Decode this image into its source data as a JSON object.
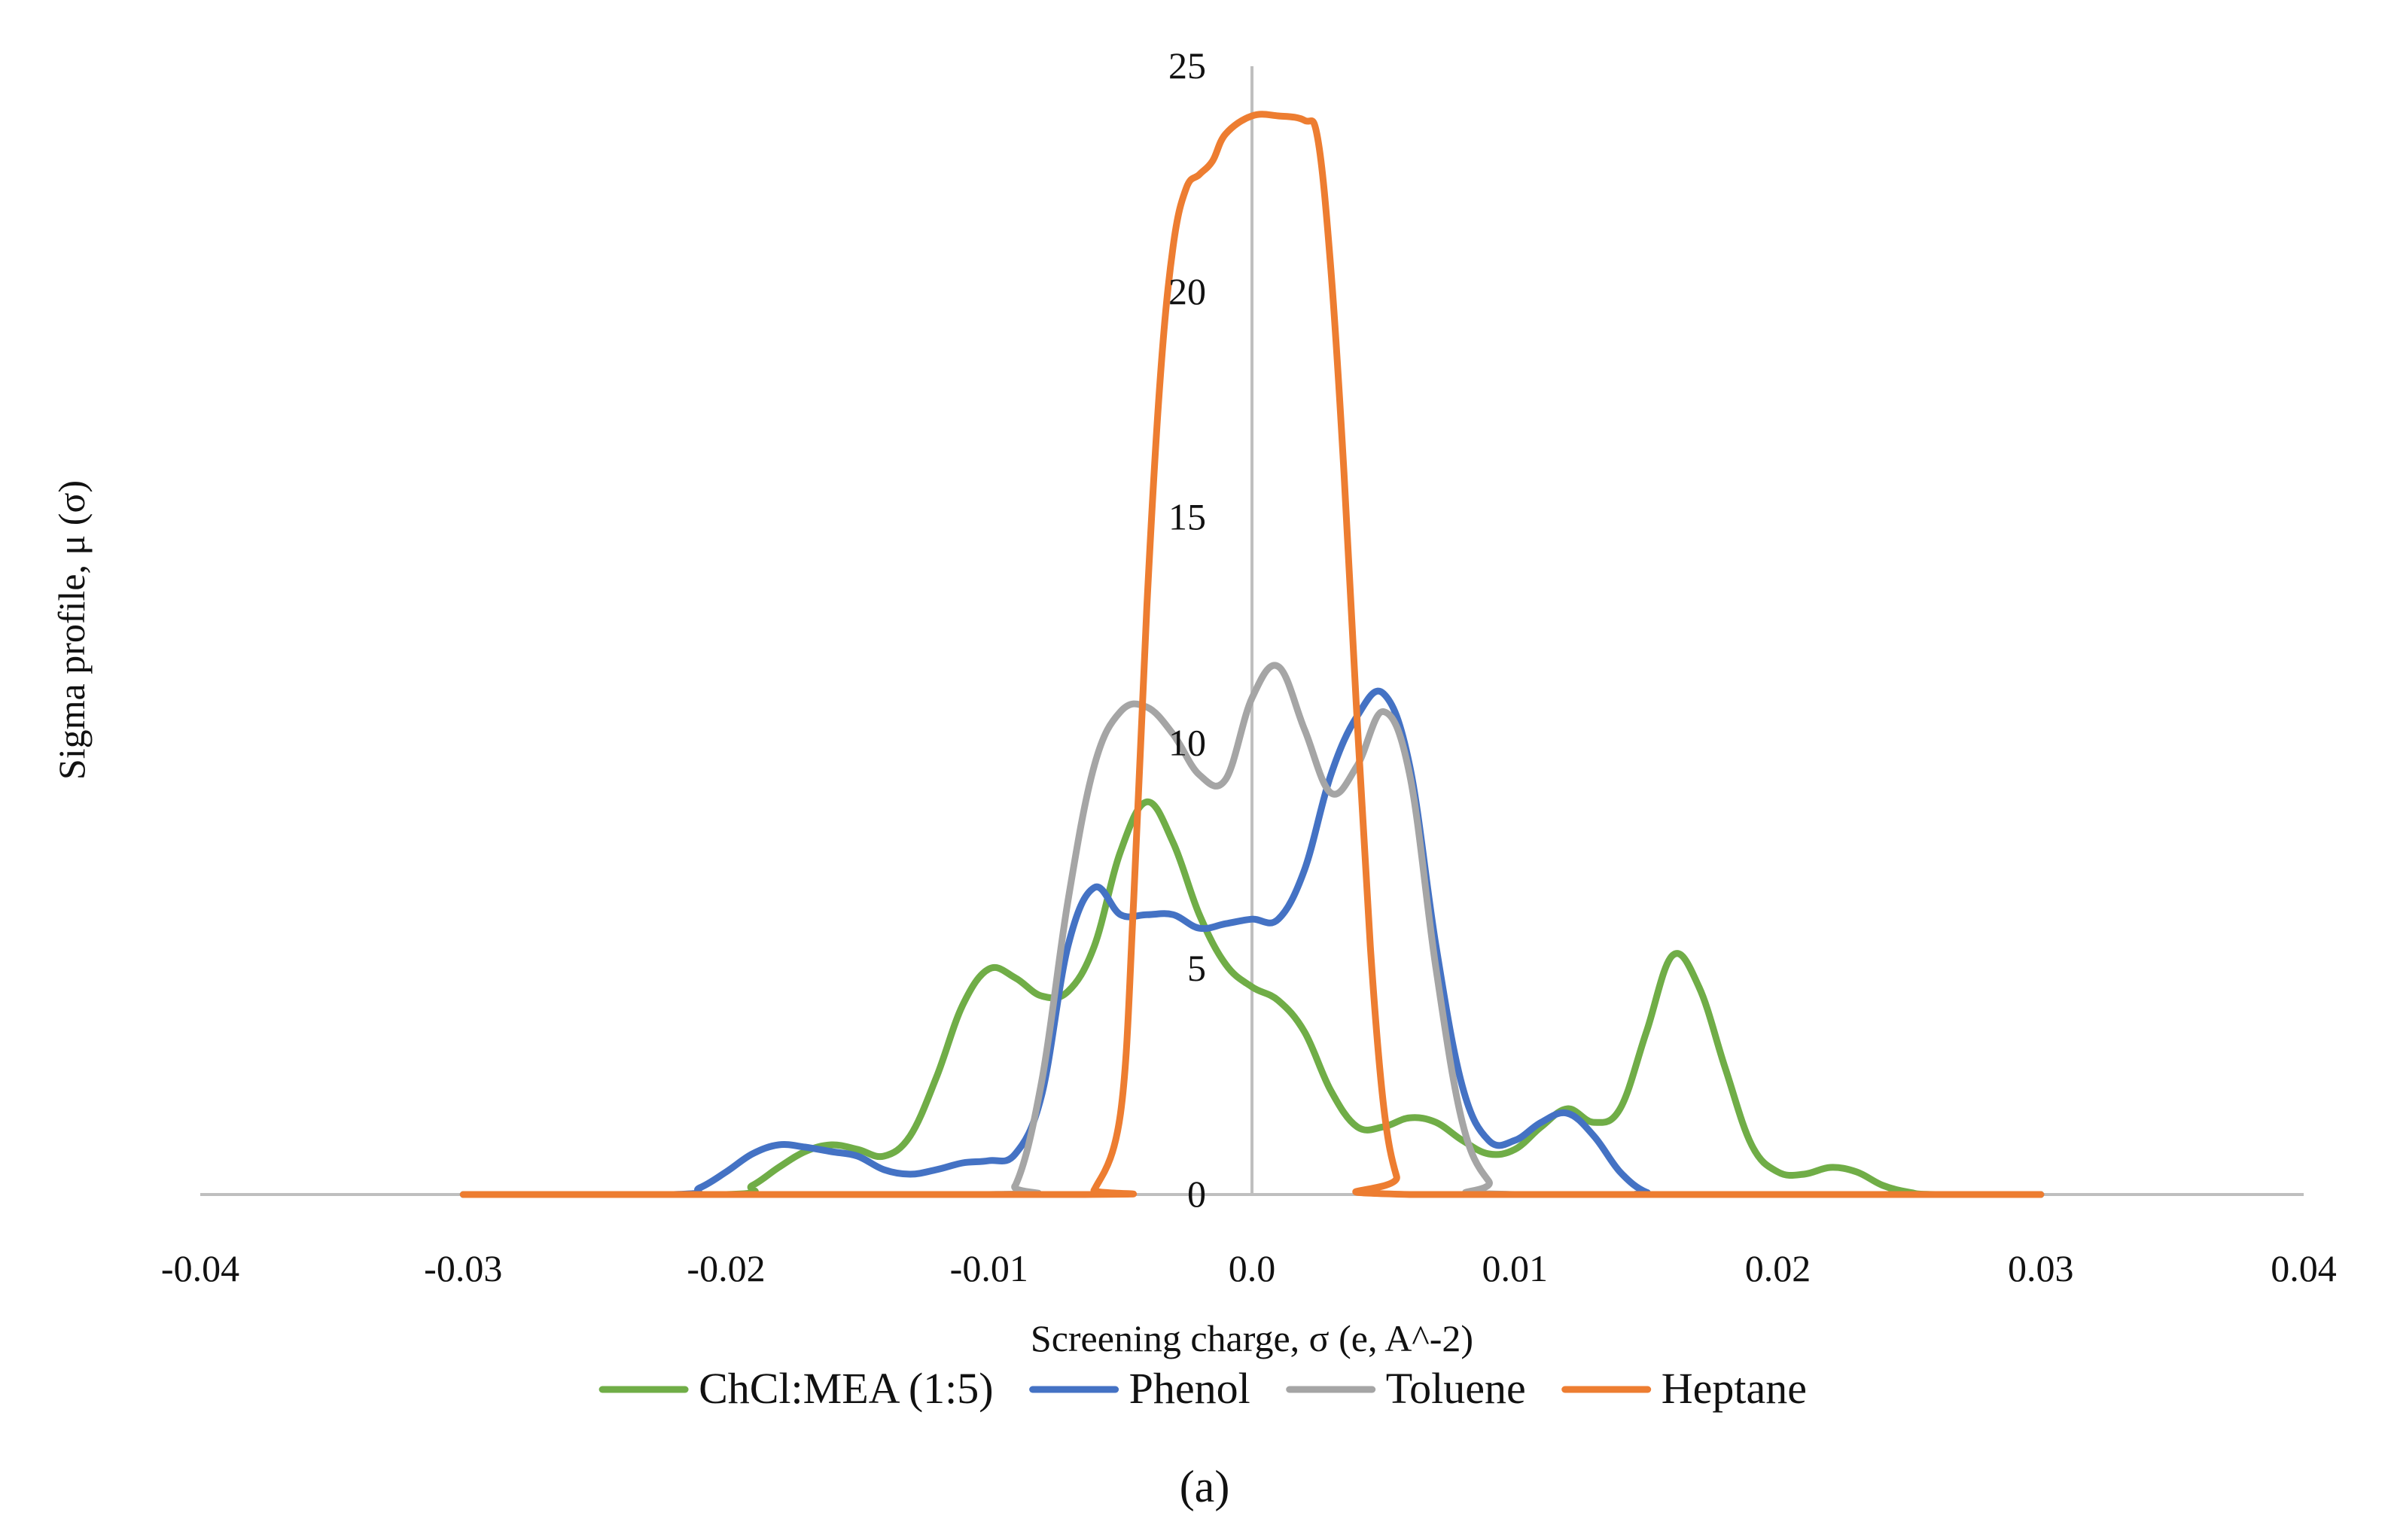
{
  "chart_data": {
    "type": "line",
    "title": "",
    "xlabel": "Screening charge, σ  (e, A^-2)",
    "ylabel": "Sigma profile,  μ (σ)",
    "xlim": [
      -0.04,
      0.04
    ],
    "ylim": [
      0,
      25
    ],
    "x_ticks": [
      "-0.04",
      "-0.03",
      "-0.02",
      "-0.01",
      "0.0",
      "0.01",
      "0.02",
      "0.03",
      "0.04"
    ],
    "y_ticks": [
      "0",
      "5",
      "10",
      "15",
      "20",
      "25"
    ],
    "legend_position": "bottom",
    "caption": "(a)",
    "series": [
      {
        "name": "ChCl:MEA (1:5)",
        "color": "#70ad47",
        "points": [
          [
            -0.03,
            0
          ],
          [
            -0.02,
            0
          ],
          [
            -0.019,
            0.2
          ],
          [
            -0.018,
            0.6
          ],
          [
            -0.017,
            0.95
          ],
          [
            -0.016,
            1.1
          ],
          [
            -0.015,
            1.0
          ],
          [
            -0.014,
            0.85
          ],
          [
            -0.013,
            1.3
          ],
          [
            -0.012,
            2.6
          ],
          [
            -0.011,
            4.2
          ],
          [
            -0.01,
            5.0
          ],
          [
            -0.009,
            4.8
          ],
          [
            -0.008,
            4.4
          ],
          [
            -0.007,
            4.5
          ],
          [
            -0.006,
            5.5
          ],
          [
            -0.005,
            7.6
          ],
          [
            -0.004,
            8.7
          ],
          [
            -0.003,
            7.8
          ],
          [
            -0.002,
            6.2
          ],
          [
            -0.001,
            5.1
          ],
          [
            0.0,
            4.6
          ],
          [
            0.001,
            4.3
          ],
          [
            0.002,
            3.6
          ],
          [
            0.003,
            2.3
          ],
          [
            0.004,
            1.5
          ],
          [
            0.005,
            1.5
          ],
          [
            0.006,
            1.7
          ],
          [
            0.007,
            1.6
          ],
          [
            0.008,
            1.2
          ],
          [
            0.009,
            0.9
          ],
          [
            0.01,
            1.0
          ],
          [
            0.011,
            1.5
          ],
          [
            0.012,
            1.9
          ],
          [
            0.013,
            1.6
          ],
          [
            0.014,
            1.9
          ],
          [
            0.015,
            3.6
          ],
          [
            0.016,
            5.3
          ],
          [
            0.017,
            4.6
          ],
          [
            0.018,
            2.8
          ],
          [
            0.019,
            1.1
          ],
          [
            0.02,
            0.5
          ],
          [
            0.021,
            0.45
          ],
          [
            0.022,
            0.6
          ],
          [
            0.023,
            0.5
          ],
          [
            0.024,
            0.2
          ],
          [
            0.025,
            0.05
          ],
          [
            0.026,
            0
          ],
          [
            0.03,
            0
          ]
        ]
      },
      {
        "name": "Phenol",
        "color": "#4472c4",
        "points": [
          [
            -0.03,
            0
          ],
          [
            -0.022,
            0
          ],
          [
            -0.021,
            0.15
          ],
          [
            -0.02,
            0.5
          ],
          [
            -0.019,
            0.9
          ],
          [
            -0.018,
            1.1
          ],
          [
            -0.017,
            1.05
          ],
          [
            -0.016,
            0.95
          ],
          [
            -0.015,
            0.85
          ],
          [
            -0.014,
            0.55
          ],
          [
            -0.013,
            0.45
          ],
          [
            -0.012,
            0.55
          ],
          [
            -0.011,
            0.7
          ],
          [
            -0.01,
            0.75
          ],
          [
            -0.009,
            0.9
          ],
          [
            -0.008,
            2.2
          ],
          [
            -0.007,
            5.5
          ],
          [
            -0.006,
            6.8
          ],
          [
            -0.005,
            6.2
          ],
          [
            -0.004,
            6.2
          ],
          [
            -0.003,
            6.2
          ],
          [
            -0.002,
            5.9
          ],
          [
            -0.001,
            6.0
          ],
          [
            0.0,
            6.1
          ],
          [
            0.001,
            6.1
          ],
          [
            0.002,
            7.2
          ],
          [
            0.003,
            9.3
          ],
          [
            0.004,
            10.6
          ],
          [
            0.005,
            11.1
          ],
          [
            0.006,
            9.5
          ],
          [
            0.007,
            5.5
          ],
          [
            0.008,
            2.4
          ],
          [
            0.009,
            1.2
          ],
          [
            0.01,
            1.2
          ],
          [
            0.011,
            1.6
          ],
          [
            0.012,
            1.8
          ],
          [
            0.013,
            1.3
          ],
          [
            0.014,
            0.5
          ],
          [
            0.015,
            0.05
          ],
          [
            0.016,
            0
          ],
          [
            0.03,
            0
          ]
        ]
      },
      {
        "name": "Toluene",
        "color": "#a5a5a5",
        "points": [
          [
            -0.03,
            0
          ],
          [
            -0.01,
            0
          ],
          [
            -0.009,
            0.2
          ],
          [
            -0.008,
            2.5
          ],
          [
            -0.007,
            6.5
          ],
          [
            -0.006,
            9.5
          ],
          [
            -0.005,
            10.7
          ],
          [
            -0.004,
            10.8
          ],
          [
            -0.003,
            10.2
          ],
          [
            -0.002,
            9.3
          ],
          [
            -0.001,
            9.2
          ],
          [
            0.0,
            11.0
          ],
          [
            0.001,
            11.7
          ],
          [
            0.002,
            10.3
          ],
          [
            0.003,
            8.9
          ],
          [
            0.004,
            9.5
          ],
          [
            0.005,
            10.7
          ],
          [
            0.006,
            9.3
          ],
          [
            0.007,
            5.0
          ],
          [
            0.008,
            1.6
          ],
          [
            0.009,
            0.3
          ],
          [
            0.01,
            0
          ],
          [
            0.03,
            0
          ]
        ]
      },
      {
        "name": "Heptane",
        "color": "#ed7d31",
        "points": [
          [
            -0.03,
            0
          ],
          [
            -0.0065,
            0
          ],
          [
            -0.006,
            0.1
          ],
          [
            -0.005,
            1.8
          ],
          [
            -0.0045,
            6.5
          ],
          [
            -0.004,
            13.0
          ],
          [
            -0.0035,
            18.0
          ],
          [
            -0.003,
            21.0
          ],
          [
            -0.0025,
            22.3
          ],
          [
            -0.002,
            22.6
          ],
          [
            -0.0015,
            22.9
          ],
          [
            -0.001,
            23.5
          ],
          [
            0.0,
            23.9
          ],
          [
            0.001,
            23.9
          ],
          [
            0.002,
            23.8
          ],
          [
            0.0025,
            23.4
          ],
          [
            0.003,
            20.5
          ],
          [
            0.0035,
            16.0
          ],
          [
            0.004,
            10.5
          ],
          [
            0.0045,
            5.5
          ],
          [
            0.005,
            2.0
          ],
          [
            0.0055,
            0.4
          ],
          [
            0.006,
            0
          ],
          [
            0.03,
            0
          ]
        ]
      }
    ]
  }
}
